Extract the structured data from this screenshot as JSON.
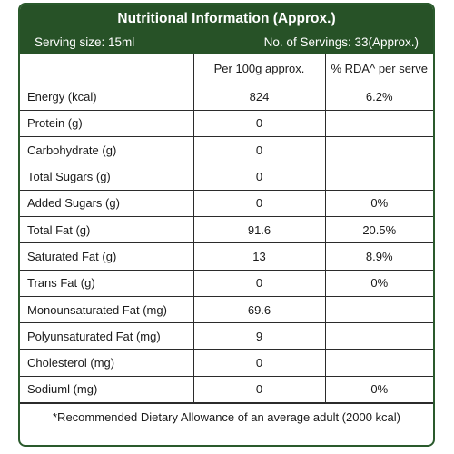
{
  "header": {
    "title": "Nutritional Information (Approx.)",
    "serving_size": "Serving size: 15ml",
    "servings": "No. of Servings: 33(Approx.)"
  },
  "columns": [
    "",
    "Per 100g approx.",
    "% RDA^ per serve"
  ],
  "rows": [
    {
      "name": "Energy (kcal)",
      "per100": "824",
      "rda": "6.2%"
    },
    {
      "name": "Protein (g)",
      "per100": "0",
      "rda": ""
    },
    {
      "name": "Carbohydrate (g)",
      "per100": "0",
      "rda": ""
    },
    {
      "name": "Total Sugars (g)",
      "per100": "0",
      "rda": ""
    },
    {
      "name": "Added Sugars (g)",
      "per100": "0",
      "rda": "0%"
    },
    {
      "name": "Total Fat (g)",
      "per100": "91.6",
      "rda": "20.5%"
    },
    {
      "name": "Saturated Fat (g)",
      "per100": "13",
      "rda": "8.9%"
    },
    {
      "name": "Trans Fat (g)",
      "per100": "0",
      "rda": "0%"
    },
    {
      "name": "Monounsaturated Fat (mg)",
      "per100": "69.6",
      "rda": ""
    },
    {
      "name": "Polyunsaturated Fat (mg)",
      "per100": "9",
      "rda": ""
    },
    {
      "name": "Cholesterol (mg)",
      "per100": "0",
      "rda": ""
    },
    {
      "name": "Sodiuml (mg)",
      "per100": "0",
      "rda": "0%"
    }
  ],
  "footnote": "*Recommended Dietary Allowance of an average adult (2000 kcal)",
  "colors": {
    "header_bg": "#275227",
    "border": "#2b2b2b"
  }
}
